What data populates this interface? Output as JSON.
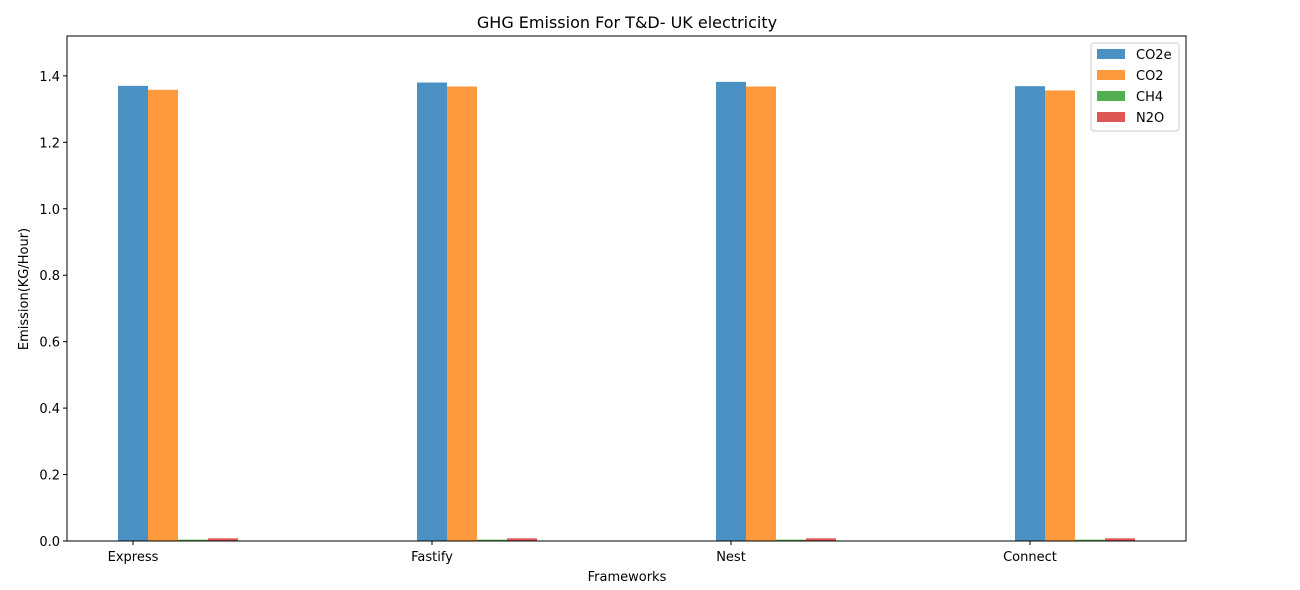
{
  "chart_data": {
    "type": "bar",
    "title": "GHG Emission For T&D- UK electricity",
    "xlabel": "Frameworks",
    "ylabel": "Emission(KG/Hour)",
    "categories": [
      "Express",
      "Fastify",
      "Nest",
      "Connect"
    ],
    "series": [
      {
        "name": "CO2e",
        "color": "#4c91c3",
        "values": [
          1.37,
          1.38,
          1.382,
          1.369
        ]
      },
      {
        "name": "CO2",
        "color": "#ff993e",
        "values": [
          1.358,
          1.368,
          1.368,
          1.356
        ]
      },
      {
        "name": "CH4",
        "color": "#52ae50",
        "values": [
          0.004,
          0.004,
          0.004,
          0.004
        ]
      },
      {
        "name": "N2O",
        "color": "#dd5554",
        "values": [
          0.008,
          0.008,
          0.008,
          0.008
        ]
      }
    ],
    "ylim": [
      0,
      1.52
    ],
    "yticks": [
      "0.0",
      "0.2",
      "0.4",
      "0.6",
      "0.8",
      "1.0",
      "1.2",
      "1.4"
    ],
    "grid": false,
    "legend_position": "top-right"
  }
}
